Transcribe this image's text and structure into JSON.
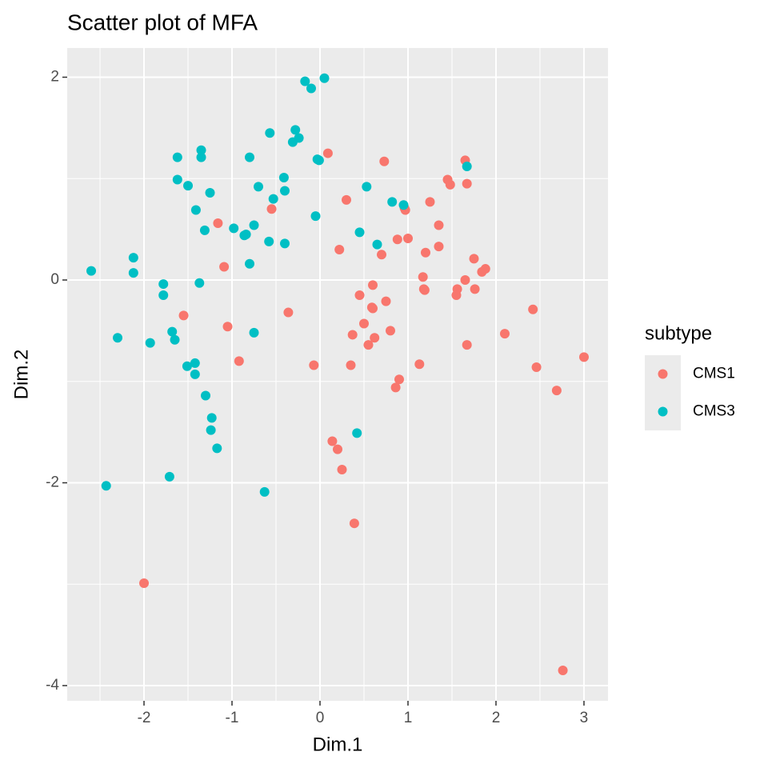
{
  "chart_data": {
    "type": "scatter",
    "title": "Scatter plot of MFA",
    "xlabel": "Dim.1",
    "ylabel": "Dim.2",
    "legend_title": "subtype",
    "legend_position": "right",
    "xlim": [
      -2.873,
      3.273
    ],
    "ylim": [
      -4.15,
      2.288
    ],
    "xticks": [
      -2,
      -1,
      0,
      1,
      2,
      3
    ],
    "yticks": [
      -4,
      -2,
      0,
      2
    ],
    "xminorticks": [
      -2.5,
      -1.5,
      -0.5,
      0.5,
      1.5,
      2.5
    ],
    "yminorticks": [
      -3,
      -1,
      1
    ],
    "grid": true,
    "series": [
      {
        "name": "CMS1",
        "color": "#F8766D",
        "x": [
          0.09,
          0.73,
          1.65,
          1.45,
          1.48,
          1.67,
          0.3,
          -0.55,
          1.25,
          0.96,
          0.97,
          -1.16,
          1.35,
          1.0,
          0.88,
          0.22,
          0.7,
          1.2,
          1.35,
          1.75,
          -1.09,
          1.17,
          0.6,
          0.45,
          1.65,
          1.56,
          1.88,
          1.84,
          1.18,
          1.19,
          1.55,
          1.76,
          0.59,
          0.6,
          0.75,
          -0.36,
          2.42,
          -1.55,
          -1.05,
          0.5,
          0.37,
          0.8,
          0.55,
          0.62,
          1.67,
          2.1,
          -0.92,
          -0.07,
          0.35,
          1.13,
          2.46,
          0.9,
          0.86,
          3.0,
          2.69,
          0.14,
          0.2,
          0.25,
          0.39,
          -2.0,
          2.76
        ],
        "values": [
          1.25,
          1.17,
          1.18,
          0.99,
          0.94,
          0.95,
          0.79,
          0.7,
          0.77,
          0.71,
          0.69,
          0.56,
          0.54,
          0.41,
          0.4,
          0.3,
          0.25,
          0.27,
          0.33,
          0.21,
          0.13,
          0.03,
          -0.05,
          -0.15,
          0.0,
          -0.09,
          0.11,
          0.08,
          -0.09,
          -0.1,
          -0.15,
          -0.09,
          -0.27,
          -0.28,
          -0.21,
          -0.32,
          -0.29,
          -0.35,
          -0.46,
          -0.43,
          -0.54,
          -0.5,
          -0.64,
          -0.57,
          -0.64,
          -0.53,
          -0.8,
          -0.84,
          -0.84,
          -0.83,
          -0.86,
          -0.98,
          -1.06,
          -0.76,
          -1.09,
          -1.59,
          -1.67,
          -1.87,
          -2.4,
          -2.99,
          -3.85
        ]
      },
      {
        "name": "CMS3",
        "color": "#00BFC4",
        "x": [
          -2.6,
          -2.43,
          -2.3,
          -2.12,
          -2.12,
          -1.93,
          -1.78,
          -1.78,
          -1.68,
          -1.65,
          -1.62,
          -1.62,
          -1.5,
          -1.41,
          -1.35,
          -1.35,
          -1.31,
          -1.25,
          -1.37,
          -1.51,
          -1.42,
          -1.42,
          -1.3,
          -1.23,
          -1.24,
          -1.17,
          -1.71,
          -0.98,
          -0.86,
          -0.84,
          -0.8,
          -0.75,
          -0.8,
          -0.75,
          -0.7,
          -0.57,
          -0.58,
          -0.53,
          -0.41,
          -0.4,
          -0.4,
          -0.31,
          -0.24,
          -0.28,
          -0.17,
          -0.1,
          0.05,
          -0.03,
          -0.01,
          -0.05,
          0.45,
          0.53,
          0.65,
          0.82,
          0.95,
          -0.63,
          0.42,
          1.67
        ],
        "values": [
          0.09,
          -2.03,
          -0.57,
          0.22,
          0.07,
          -0.62,
          -0.04,
          -0.15,
          -0.51,
          -0.59,
          1.21,
          0.99,
          0.93,
          0.69,
          1.28,
          1.21,
          0.49,
          0.86,
          -0.03,
          -0.85,
          -0.82,
          -0.93,
          -1.14,
          -1.36,
          -1.48,
          -1.66,
          -1.94,
          0.51,
          0.44,
          0.45,
          1.21,
          0.54,
          0.16,
          -0.52,
          0.92,
          1.45,
          0.38,
          0.8,
          1.01,
          0.88,
          0.36,
          1.36,
          1.4,
          1.48,
          1.96,
          1.89,
          1.99,
          1.19,
          1.18,
          0.63,
          0.47,
          0.92,
          0.35,
          0.77,
          0.74,
          -2.09,
          -1.51,
          1.12
        ]
      }
    ]
  }
}
